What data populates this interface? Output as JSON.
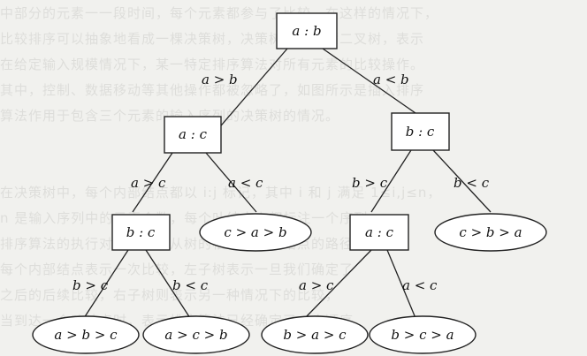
{
  "background_text": [
    "中部分的元素一一段时间，每个元素都参与了比较，在这样的情况下，",
    "比较排序可以抽象地看成一棵决策树，决策树是一棵满二叉树，表示",
    "在给定输入规模情况下，某一特定排序算法对所有元素的比较操作。",
    "其中，控制、数据移动等其他操作都被忽略了，如图所示是插入排序",
    "算法作用于包含三个元素的输入序列的决策树的情况。",
    "",
    "",
    "在决策树中，每个内部结点都以 i:j 标记，其中 i 和 j 满足 1≤i,j≤n，",
    "n 是输入序列中的元素个数，每个叶结点上都标注一个序列，",
    "排序算法的执行对应于一条从树的根结点到叶结点的路径，",
    "每个内部结点表示一次比较，左子树表示一旦我们确定了",
    "之后的后续比较，右子树则表示另一种情况下的比较，",
    "当到达一个叶结点时，表示排序算法已经确定了一个顺序。"
  ],
  "nodes": {
    "root": "a : b",
    "left": "a : c",
    "right": "b : c",
    "left_left": "b : c",
    "left_right": "c > a > b",
    "right_left": "a : c",
    "right_right": "c > b > a",
    "ll_left": "a > b > c",
    "ll_right": "a > c > b",
    "rl_left": "b > a > c",
    "rl_right": "b > c > a"
  },
  "edges": {
    "root_left": "a > b",
    "root_right": "a < b",
    "left_left": "a > c",
    "left_right": "a < c",
    "right_left": "b > c",
    "right_right": "b < c",
    "ll_left": "b > c",
    "ll_right": "b < c",
    "rl_left": "a > c",
    "rl_right": "a < c"
  }
}
